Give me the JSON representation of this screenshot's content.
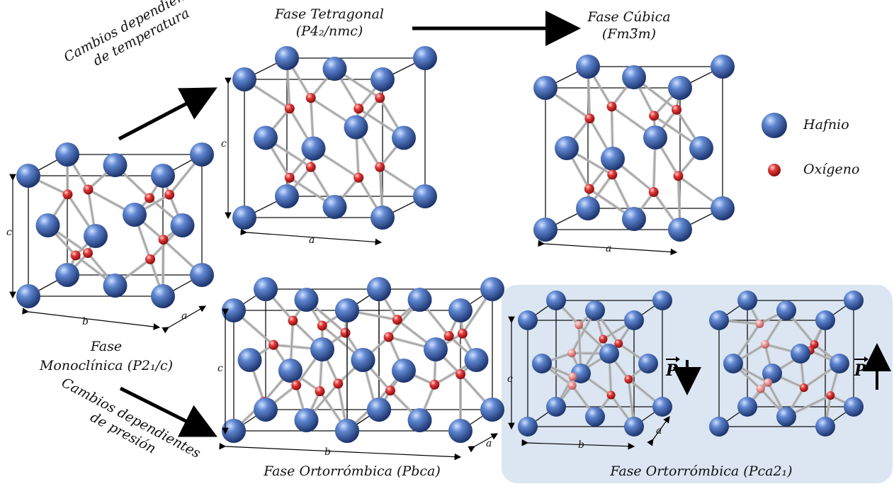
{
  "phases": {
    "monoclinic": {
      "line1": "Fase",
      "line2": "Monoclínica (P2₁/c)",
      "axis_c": "c",
      "axis_b": "b",
      "axis_a": "a"
    },
    "tetragonal": {
      "line1": "Fase Tetragonal",
      "line2": "(P4₂/nmc)",
      "axis_c": "c",
      "axis_a": "a"
    },
    "cubic": {
      "line1": "Fase Cúbica",
      "line2": "(Fm3̅m)",
      "axis_a": "a"
    },
    "ortho_pbca": {
      "label": "Fase Ortorrómbica  (Pbca)",
      "axis_c": "c",
      "axis_b": "b",
      "axis_a": "a"
    },
    "ortho_pca21": {
      "label": "Fase Ortorrómbica  (Pca2₁)",
      "axis_c": "c",
      "axis_b": "b",
      "axis_a": "a",
      "polarization": "P"
    }
  },
  "arrows": {
    "temperature_line1": "Cambios dependientes",
    "temperature_line2": "de temperatura",
    "pressure_line1": "Cambios dependientes",
    "pressure_line2": "de presión"
  },
  "legend": {
    "hafnium": "Hafnio",
    "oxygen": "Oxígeno"
  },
  "colors": {
    "hafnium": "#3b5fa6",
    "oxygen": "#d92b2b",
    "oxygen_light": "#e98a8a",
    "highlight_panel": "#dbe6f2"
  }
}
